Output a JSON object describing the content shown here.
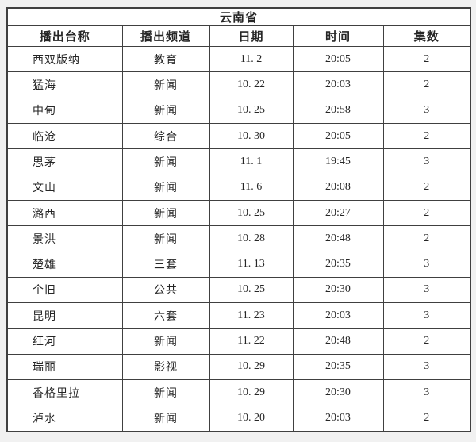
{
  "page": {
    "background_color": "#f1f1f1",
    "border_color": "#404040",
    "cell_background": "#ffffff",
    "text_color": "#262626"
  },
  "table": {
    "title": "云南省",
    "columns": [
      {
        "key": "station",
        "label": "播出台称"
      },
      {
        "key": "channel",
        "label": "播出频道"
      },
      {
        "key": "date",
        "label": "日期"
      },
      {
        "key": "time",
        "label": "时间"
      },
      {
        "key": "episodes",
        "label": "集数"
      }
    ],
    "rows": [
      {
        "station": "西双版纳",
        "channel": "教育",
        "date": "11. 2",
        "time": "20:05",
        "episodes": "2"
      },
      {
        "station": "猛海",
        "channel": "新闻",
        "date": "10. 22",
        "time": "20:03",
        "episodes": "2"
      },
      {
        "station": "中甸",
        "channel": "新闻",
        "date": "10. 25",
        "time": "20:58",
        "episodes": "3"
      },
      {
        "station": "临沧",
        "channel": "综合",
        "date": "10. 30",
        "time": "20:05",
        "episodes": "2"
      },
      {
        "station": "思茅",
        "channel": "新闻",
        "date": "11. 1",
        "time": "19:45",
        "episodes": "3"
      },
      {
        "station": "文山",
        "channel": "新闻",
        "date": "11. 6",
        "time": "20:08",
        "episodes": "2"
      },
      {
        "station": "潞西",
        "channel": "新闻",
        "date": "10. 25",
        "time": "20:27",
        "episodes": "2"
      },
      {
        "station": "景洪",
        "channel": "新闻",
        "date": "10. 28",
        "time": "20:48",
        "episodes": "2"
      },
      {
        "station": "楚雄",
        "channel": "三套",
        "date": "11. 13",
        "time": "20:35",
        "episodes": "3"
      },
      {
        "station": "个旧",
        "channel": "公共",
        "date": "10. 25",
        "time": "20:30",
        "episodes": "3"
      },
      {
        "station": "昆明",
        "channel": "六套",
        "date": "11. 23",
        "time": "20:03",
        "episodes": "3"
      },
      {
        "station": "红河",
        "channel": "新闻",
        "date": "11. 22",
        "time": "20:48",
        "episodes": "2"
      },
      {
        "station": "瑞丽",
        "channel": "影视",
        "date": "10. 29",
        "time": "20:35",
        "episodes": "3"
      },
      {
        "station": "香格里拉",
        "channel": "新闻",
        "date": "10. 29",
        "time": "20:30",
        "episodes": "3"
      },
      {
        "station": "泸水",
        "channel": "新闻",
        "date": "10. 20",
        "time": "20:03",
        "episodes": "2"
      }
    ]
  }
}
